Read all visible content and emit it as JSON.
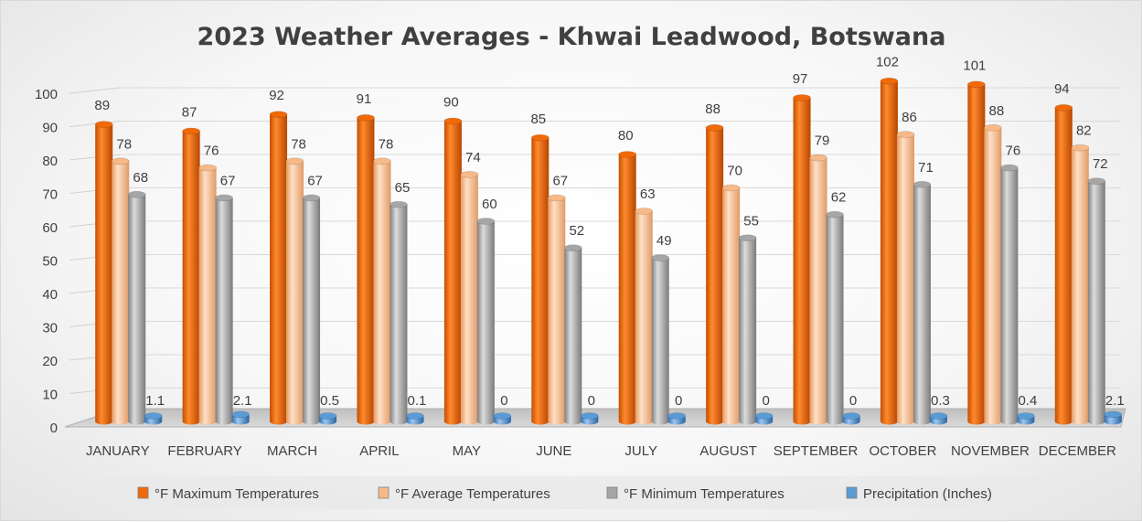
{
  "chart_data": {
    "type": "bar",
    "title": "2023 Weather Averages - Khwai Leadwood, Botswana",
    "categories": [
      "JANUARY",
      "FEBRUARY",
      "MARCH",
      "APRIL",
      "MAY",
      "JUNE",
      "JULY",
      "AUGUST",
      "SEPTEMBER",
      "OCTOBER",
      "NOVEMBER",
      "DECEMBER"
    ],
    "series": [
      {
        "name": "°F Maximum Temperatures",
        "color": "#f06a0a",
        "values": [
          89,
          87,
          92,
          91,
          90,
          85,
          80,
          88,
          97,
          102,
          101,
          94
        ],
        "labels": [
          "89",
          "87",
          "92",
          "91",
          "90",
          "85",
          "80",
          "88",
          "97",
          "102",
          "101",
          "94"
        ]
      },
      {
        "name": "°F Average Temperatures",
        "color": "#f7b987",
        "values": [
          78,
          76,
          78,
          78,
          74,
          67,
          63,
          70,
          79,
          86,
          88,
          82
        ],
        "labels": [
          "78",
          "76",
          "78",
          "78",
          "74",
          "67",
          "63",
          "70",
          "79",
          "86",
          "88",
          "82"
        ]
      },
      {
        "name": "°F Minimum Temperatures",
        "color": "#a6a6a6",
        "values": [
          68,
          67,
          67,
          65,
          60,
          52,
          49,
          55,
          62,
          71,
          76,
          72
        ],
        "labels": [
          "68",
          "67",
          "67",
          "65",
          "60",
          "52",
          "49",
          "55",
          "62",
          "71",
          "76",
          "72"
        ]
      },
      {
        "name": "Precipitation (Inches)",
        "color": "#5b9bd5",
        "values": [
          1.1,
          2.1,
          0.5,
          0.1,
          0,
          0,
          0,
          0,
          0,
          0.3,
          0.4,
          2.1
        ],
        "labels": [
          "1.1",
          "2.1",
          "0.5",
          "0.1",
          "0",
          "0",
          "0",
          "0",
          "0",
          "0.3",
          "0.4",
          "2.1"
        ]
      }
    ],
    "y_ticks": [
      "0",
      "10",
      "20",
      "30",
      "40",
      "50",
      "60",
      "70",
      "80",
      "90",
      "100"
    ],
    "ylim": [
      0,
      100
    ],
    "grid": true,
    "legend_position": "bottom",
    "style": "3d-clustered-cylinder"
  }
}
